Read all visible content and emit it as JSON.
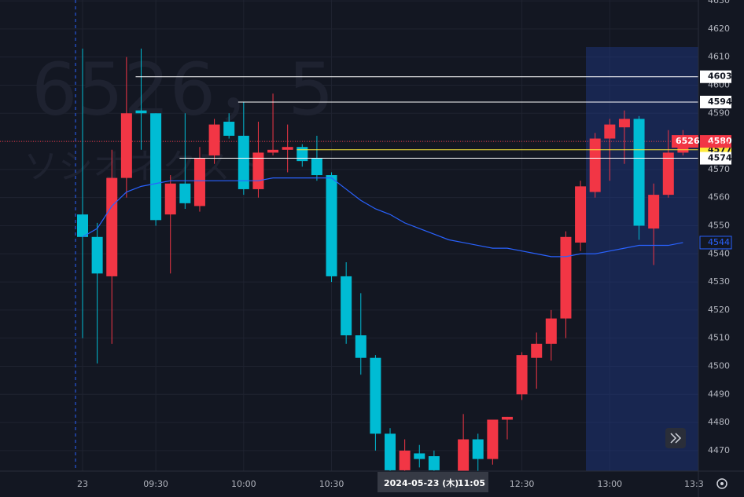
{
  "chart_data": {
    "type": "candlestick",
    "watermark": "6526，5",
    "watermark_name": "ソシオネクスト",
    "categories": [
      "23",
      null,
      null,
      null,
      null,
      "09:30",
      null,
      null,
      null,
      null,
      null,
      "10:00",
      null,
      null,
      null,
      null,
      null,
      "10:30",
      null,
      null,
      null,
      null,
      null,
      null,
      null,
      null,
      null,
      null,
      null,
      null,
      "12:30",
      null,
      null,
      null,
      null,
      null,
      "13:00",
      null,
      null,
      null,
      null,
      null
    ],
    "x_edge_label": "13:3",
    "crosshair_date": "2024-05-23 (木)",
    "crosshair_time": "11:05",
    "up_color": "#f23645",
    "down_color": "#00bcd4",
    "open": [
      4554,
      4546,
      4532,
      4567,
      4591,
      4590,
      4554,
      4565,
      4557,
      4575,
      4587,
      4582,
      4563,
      4576,
      4577,
      4578,
      4574,
      4568,
      4532,
      4511,
      4503,
      4476,
      4463,
      4469,
      4468,
      4460,
      4462,
      4474,
      4467,
      4481,
      4490,
      4503,
      4508,
      4517,
      4544,
      4562,
      4581,
      4585,
      4588,
      4549,
      4561,
      4576
    ],
    "high": [
      4613,
      4551,
      4577,
      4610,
      4613,
      4590,
      4568,
      4590,
      4578,
      4588,
      4590,
      4594,
      4587,
      4597,
      4586,
      4579,
      4582,
      4569,
      4537,
      4526,
      4504,
      4478,
      4474,
      4472,
      4470,
      4462,
      4483,
      4476,
      4481,
      4482,
      4505,
      4512,
      4520,
      4548,
      4566,
      4583,
      4588,
      4591,
      4589,
      4565,
      4584,
      4584
    ],
    "low": [
      4510,
      4501,
      4508,
      4560,
      4577,
      4550,
      4533,
      4556,
      4555,
      4572,
      4581,
      4561,
      4560,
      4575,
      4569,
      4571,
      4566,
      4530,
      4508,
      4497,
      4470,
      4460,
      4460,
      4464,
      4460,
      4456,
      4458,
      4460,
      4465,
      4474,
      4488,
      4492,
      4502,
      4510,
      4541,
      4560,
      4566,
      4572,
      4545,
      4536,
      4560,
      4575
    ],
    "close": [
      4546,
      4533,
      4567,
      4590,
      4590,
      4552,
      4565,
      4558,
      4574,
      4586,
      4582,
      4563,
      4576,
      4577,
      4578,
      4573,
      4568,
      4532,
      4511,
      4503,
      4476,
      4463,
      4470,
      4467,
      4463,
      4461,
      4474,
      4467,
      4481,
      4482,
      4504,
      4508,
      4517,
      4546,
      4564,
      4581,
      4586,
      4588,
      4550,
      4561,
      4576,
      4580
    ],
    "ma": {
      "color": "#2962ff",
      "values": [
        4546,
        4549,
        4557,
        4562,
        4564,
        4565,
        4566,
        4566,
        4566,
        4566,
        4566,
        4566,
        4566,
        4567,
        4567,
        4567,
        4567,
        4567,
        4563,
        4559,
        4556,
        4554,
        4551,
        4549,
        4547,
        4545,
        4544,
        4543,
        4542,
        4542,
        4541,
        4540,
        4539,
        4539,
        4540,
        4540,
        4541,
        4542,
        4543,
        4543,
        4543,
        4544
      ]
    },
    "levels": [
      {
        "value": 4603,
        "color": "#ffffff",
        "start": 4
      },
      {
        "value": 4594,
        "color": "#ffffff",
        "start": 11
      },
      {
        "value": 4577,
        "color": "#ffeb3b",
        "start": 15
      },
      {
        "value": 4574,
        "color": "#ffffff",
        "start": 7
      }
    ],
    "last_price": 4580,
    "symbol_code": "6526",
    "marker_price": 4579,
    "ma_price": 4544,
    "ylim": [
      4462.7,
      4630.3
    ],
    "yticks": [
      4470,
      4480,
      4490,
      4500,
      4510,
      4520,
      4530,
      4540,
      4550,
      4560,
      4570,
      4580,
      4590,
      4600,
      4610,
      4620,
      4630
    ],
    "grid": true
  }
}
